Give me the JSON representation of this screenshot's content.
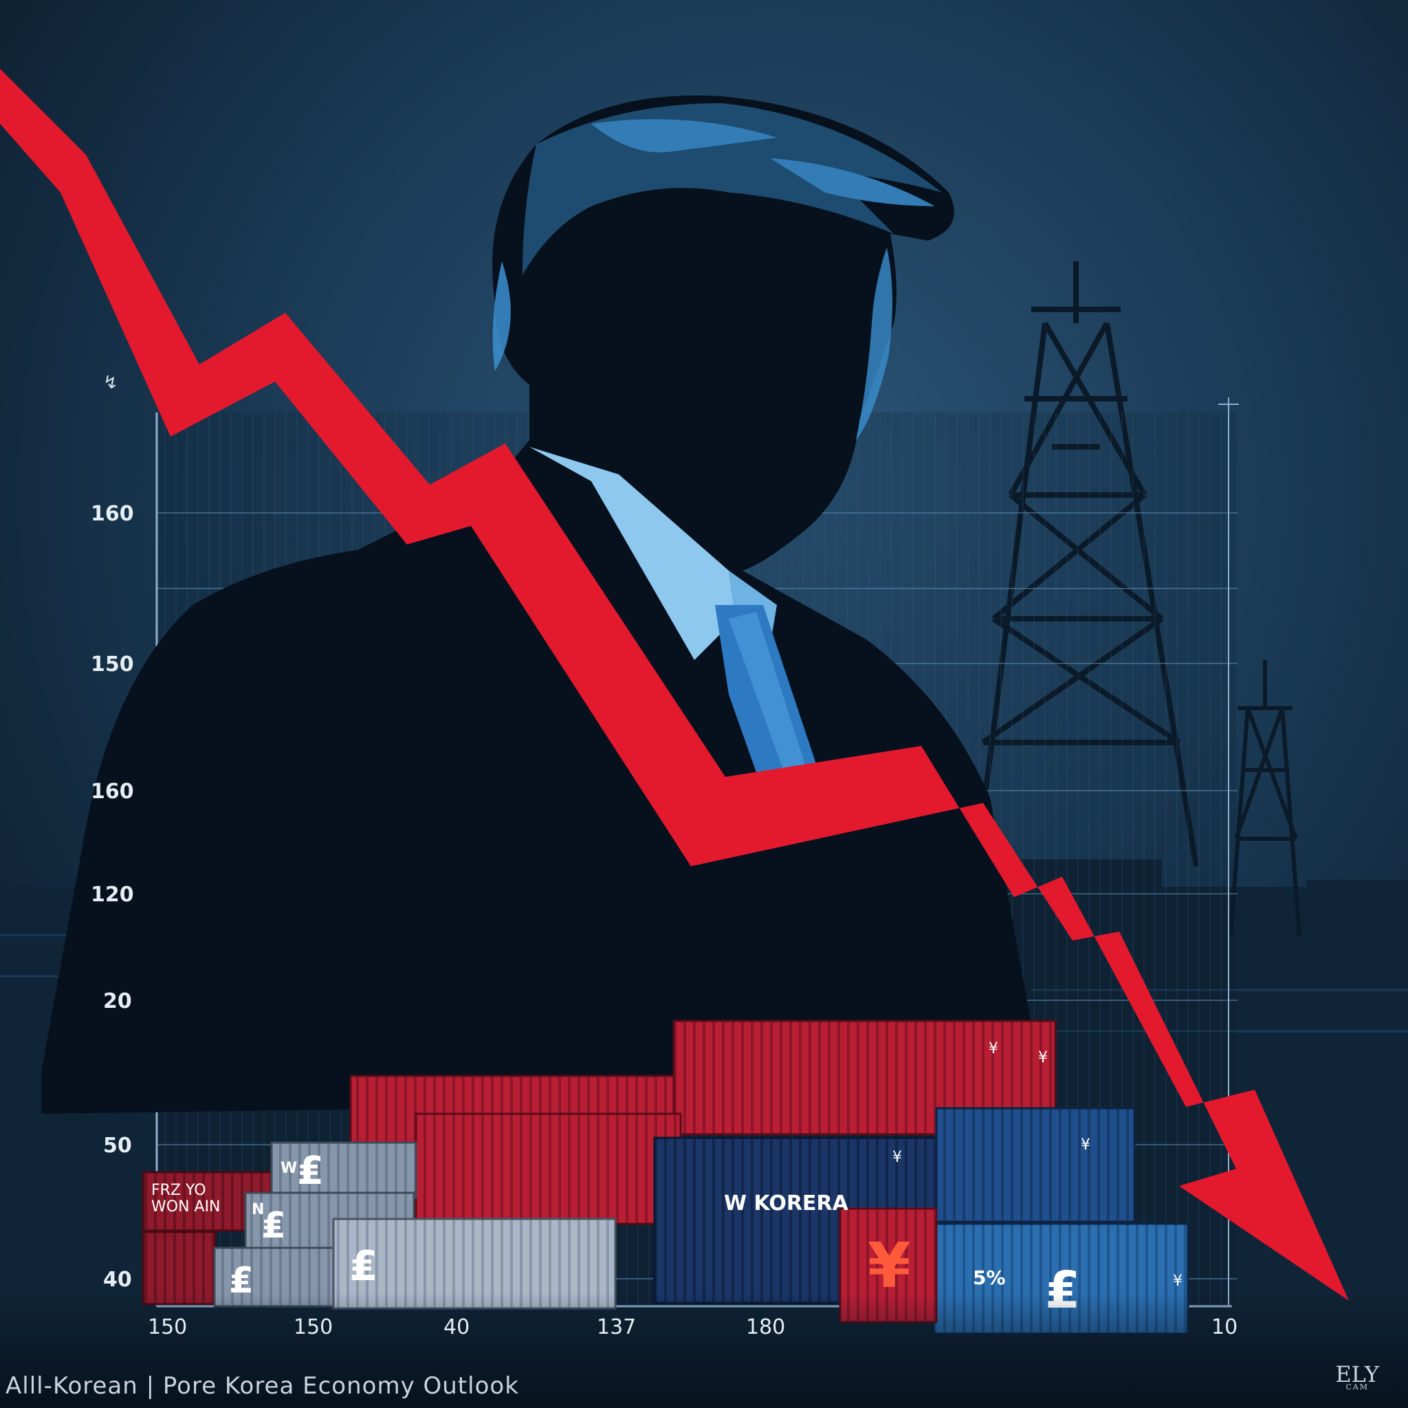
{
  "chart": {
    "corner_mark": "↯",
    "y_labels": [
      "160",
      "150",
      "160",
      "120",
      "20",
      "50",
      "40"
    ],
    "x_labels": [
      "150",
      "150",
      "40",
      "137",
      "180",
      "10"
    ]
  },
  "containers": {
    "label_frz": "FRZ YO",
    "label_won": "WON AIN",
    "label_w": "W",
    "label_n": "N",
    "label_wkorea": "W KORERA",
    "label_5pct": "5%",
    "yen": "¥",
    "currency_symbol": "₤",
    "marks": [
      "¥",
      "¥",
      "¥",
      "¥",
      "¥"
    ]
  },
  "footer": {
    "caption": "Alll-Korean | Pore Korea Economy Outlook",
    "logo_main": "ELY",
    "logo_sub": "CAM"
  },
  "colors": {
    "background": "#0e2233",
    "trend_arrow": "#e3192e",
    "silhouette": "#07111d",
    "highlight_blue": "#3b8fd0"
  }
}
